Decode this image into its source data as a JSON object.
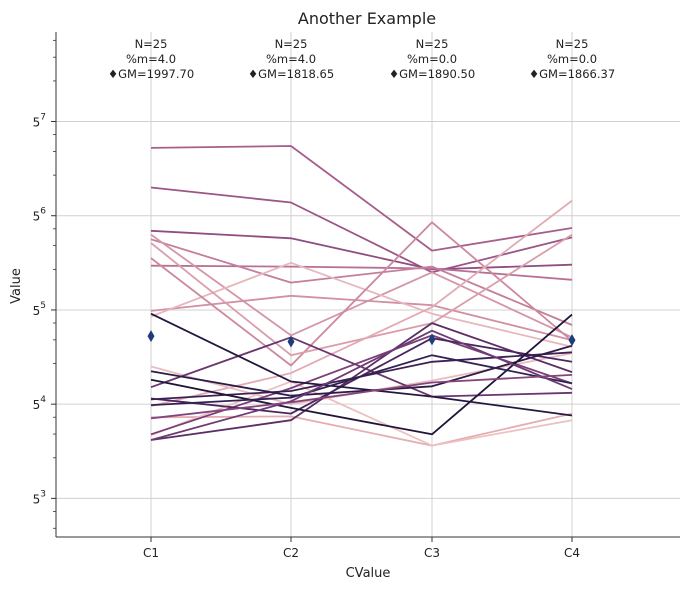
{
  "chart_data": {
    "type": "line",
    "title": "Another Example",
    "xlabel": "CValue",
    "ylabel": "Value",
    "y_scale": "log base 5",
    "ylim_exponent": [
      2.59,
      7.95
    ],
    "grid": true,
    "categories": [
      "C1",
      "C2",
      "C3",
      "C4"
    ],
    "y_ticks": [
      {
        "base": "5",
        "exp": "3",
        "exponent": 3
      },
      {
        "base": "5",
        "exp": "4",
        "exponent": 4
      },
      {
        "base": "5",
        "exp": "5",
        "exponent": 5
      },
      {
        "base": "5",
        "exp": "6",
        "exponent": 6
      },
      {
        "base": "5",
        "exp": "7",
        "exponent": 7
      }
    ],
    "annotations": [
      {
        "n": "N=25",
        "pct": "%m=4.0",
        "gm": "♦GM=1997.70"
      },
      {
        "n": "N=25",
        "pct": "%m=4.0",
        "gm": "♦GM=1818.65"
      },
      {
        "n": "N=25",
        "pct": "%m=0.0",
        "gm": "♦GM=1890.50"
      },
      {
        "n": "N=25",
        "pct": "%m=0.0",
        "gm": "♦GM=1866.37"
      }
    ],
    "geometric_means": [
      1997.7,
      1818.65,
      1890.5,
      1866.37
    ],
    "marker_color": "#1f3d7a",
    "series_exponents": [
      {
        "color": "#a75e8a",
        "values": [
          6.72,
          6.74,
          5.63,
          5.87
        ]
      },
      {
        "color": "#9c5585",
        "values": [
          6.3,
          6.14,
          5.4,
          5.77
        ]
      },
      {
        "color": "#8f4d80",
        "values": [
          5.84,
          5.76,
          5.43,
          5.48
        ]
      },
      {
        "color": "#b87195",
        "values": [
          5.47,
          5.46,
          5.44,
          5.32
        ]
      },
      {
        "color": "#c47d9a",
        "values": [
          5.75,
          5.29,
          5.46,
          4.84
        ]
      },
      {
        "color": "#d595a7",
        "values": [
          5.8,
          4.73,
          5.4,
          4.71
        ]
      },
      {
        "color": "#d190a4",
        "values": [
          4.99,
          5.15,
          5.05,
          4.68
        ]
      },
      {
        "color": "#e6b7bc",
        "values": [
          4.93,
          5.5,
          4.96,
          4.61
        ]
      },
      {
        "color": "#cc889f",
        "values": [
          5.55,
          4.41,
          5.93,
          4.67
        ]
      },
      {
        "color": "#d99ea9",
        "values": [
          5.71,
          4.52,
          4.86,
          5.8
        ]
      },
      {
        "color": "#e2abb4",
        "values": [
          3.98,
          4.33,
          5.03,
          6.16
        ]
      },
      {
        "color": "#e9bcbd",
        "values": [
          4.4,
          4.0,
          4.25,
          4.54
        ]
      },
      {
        "color": "#e5acb1",
        "values": [
          3.86,
          3.87,
          3.56,
          3.9
        ]
      },
      {
        "color": "#ecc1c2",
        "values": [
          3.67,
          4.24,
          3.56,
          3.83
        ]
      },
      {
        "color": "#6a3570",
        "values": [
          4.18,
          4.71,
          4.08,
          4.12
        ]
      },
      {
        "color": "#7a3f78",
        "values": [
          3.68,
          4.17,
          4.73,
          4.22
        ]
      },
      {
        "color": "#5b2e66",
        "values": [
          3.62,
          3.83,
          4.86,
          4.34
        ]
      },
      {
        "color": "#4b265d",
        "values": [
          4.06,
          3.9,
          4.7,
          4.45
        ]
      },
      {
        "color": "#3d2153",
        "values": [
          4.05,
          4.14,
          4.45,
          4.55
        ]
      },
      {
        "color": "#2d1b49",
        "values": [
          4.35,
          4.09,
          4.19,
          4.62
        ]
      },
      {
        "color": "#251740",
        "values": [
          4.96,
          4.24,
          4.08,
          3.88
        ]
      },
      {
        "color": "#1f1538",
        "values": [
          4.26,
          3.96,
          3.68,
          4.95
        ]
      },
      {
        "color": "#332052",
        "values": [
          3.99,
          4.07,
          4.52,
          4.22
        ]
      },
      {
        "color": "#6e3a74",
        "values": [
          3.62,
          4.03,
          4.78,
          4.16
        ]
      },
      {
        "color": "#84457c",
        "values": [
          3.85,
          4.02,
          4.23,
          4.31
        ]
      }
    ]
  }
}
